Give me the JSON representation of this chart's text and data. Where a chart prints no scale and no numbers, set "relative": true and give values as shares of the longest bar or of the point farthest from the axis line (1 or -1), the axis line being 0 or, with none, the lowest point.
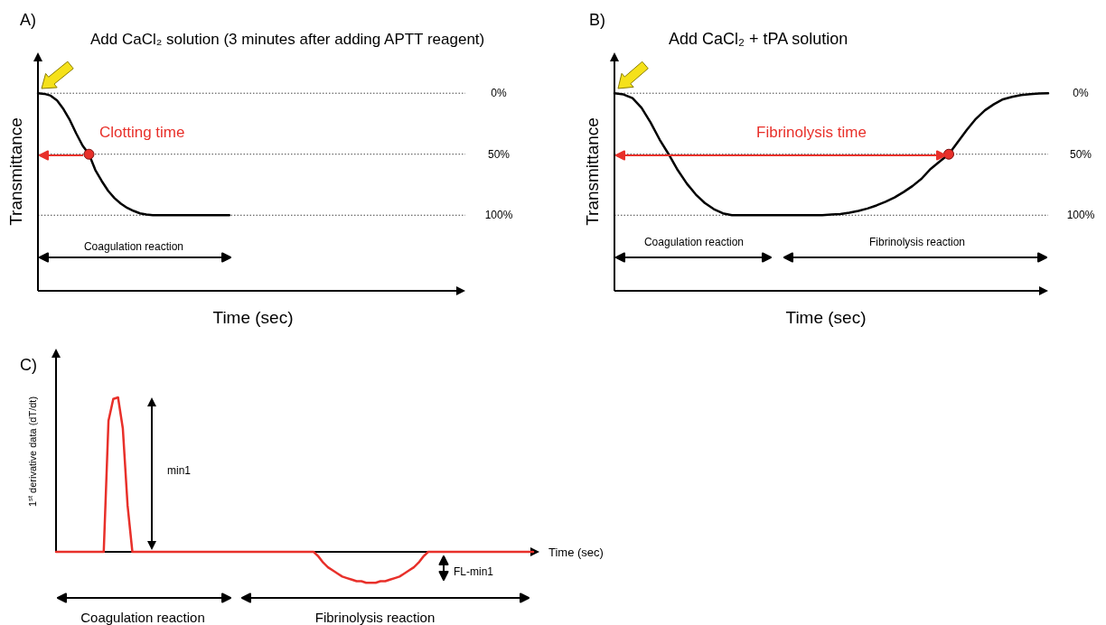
{
  "chart_data": [
    {
      "type": "line",
      "title": "A)",
      "xlabel": "Time (sec)",
      "ylabel": "Transmittance",
      "ylim": [
        162,
        -32
      ],
      "yticks": [
        {
          "value": 0,
          "label": "0%"
        },
        {
          "value": 50,
          "label": "50%"
        },
        {
          "value": 100,
          "label": "100%"
        }
      ],
      "grid": "y",
      "tick_labels": "y",
      "annotations": [
        "Add CaCl₂ solution (3 minutes after adding APTT reagent)",
        "Clotting time",
        "Coagulation reaction"
      ],
      "categories": [
        null,
        null,
        null,
        null,
        null,
        null,
        null,
        null,
        null,
        null,
        null,
        null,
        null,
        null,
        null,
        null,
        null,
        null,
        null,
        null,
        null,
        null,
        null,
        null,
        null,
        null,
        null,
        null,
        null,
        null,
        null,
        null,
        null,
        null,
        null,
        null,
        null,
        null,
        null,
        null,
        null,
        null,
        null,
        null,
        null,
        null,
        null,
        null,
        null,
        null,
        null,
        null,
        null,
        null,
        null,
        null,
        null,
        null,
        null,
        null,
        null,
        null,
        null,
        null,
        null,
        null,
        null,
        null
      ],
      "series": [
        {
          "type": "line",
          "color": "#000000",
          "marker": "none",
          "line_style": "solid",
          "values": [
            0,
            0.5,
            2,
            6,
            13,
            22,
            33,
            43,
            50,
            63,
            72,
            80,
            86,
            90.5,
            94,
            96.5,
            98.5,
            99.5,
            100,
            100,
            100,
            100,
            100,
            100,
            100,
            100,
            100,
            100,
            100,
            100,
            100,
            null,
            null,
            null,
            null,
            null,
            null,
            null,
            null,
            null,
            null,
            null,
            null,
            null,
            null,
            null,
            null,
            null,
            null,
            null,
            null,
            null,
            null,
            null,
            null,
            null,
            null,
            null,
            null,
            null,
            null,
            null,
            null,
            null,
            null,
            null,
            null,
            null
          ]
        },
        {
          "type": "scatter",
          "color": "#e8302a",
          "marker": "circle",
          "values": [
            null,
            null,
            null,
            null,
            null,
            null,
            null,
            null,
            50,
            null,
            null,
            null,
            null,
            null,
            null,
            null,
            null,
            null,
            null,
            null,
            null,
            null,
            null,
            null,
            null,
            null,
            null,
            null,
            null,
            null,
            null,
            null,
            null,
            null,
            null,
            null,
            null,
            null,
            null,
            null,
            null,
            null,
            null,
            null,
            null,
            null,
            null,
            null,
            null,
            null,
            null,
            null,
            null,
            null,
            null,
            null,
            null,
            null,
            null,
            null,
            null,
            null,
            null,
            null,
            null,
            null,
            null,
            null
          ]
        }
      ]
    },
    {
      "type": "line",
      "title": "B)",
      "xlabel": "Time (sec)",
      "ylabel": "Transmittance",
      "ylim": [
        162,
        -32
      ],
      "yticks": [
        {
          "value": 0,
          "label": "0%"
        },
        {
          "value": 50,
          "label": "50%"
        },
        {
          "value": 100,
          "label": "100%"
        }
      ],
      "grid": "y",
      "tick_labels": "y",
      "annotations": [
        "Add CaCl₂ + tPA solution",
        "Fibrinolysis time",
        "Coagulation reaction",
        "Fibrinolysis reaction"
      ],
      "categories": [
        null,
        null,
        null,
        null,
        null,
        null,
        null,
        null,
        null,
        null,
        null,
        null,
        null,
        null,
        null,
        null,
        null,
        null,
        null,
        null,
        null,
        null,
        null,
        null,
        null,
        null,
        null,
        null,
        null,
        null,
        null,
        null,
        null,
        null,
        null,
        null,
        null,
        null,
        null,
        null,
        null,
        null,
        null,
        null,
        null,
        null,
        null,
        null,
        null
      ],
      "series": [
        {
          "type": "line",
          "color": "#000000",
          "marker": "none",
          "line_style": "solid",
          "values": [
            0,
            1,
            4,
            12,
            24,
            38,
            50,
            63,
            74,
            83,
            90,
            95,
            98.5,
            100,
            100,
            100,
            100,
            100,
            100,
            100,
            100,
            100,
            100,
            100,
            99.5,
            99,
            98,
            96.5,
            94.5,
            92,
            89,
            85.5,
            81,
            76,
            70,
            62,
            56,
            50,
            40,
            30,
            21,
            14,
            9,
            5,
            3,
            1.5,
            0.8,
            0.3,
            0
          ]
        },
        {
          "type": "scatter",
          "color": "#e8302a",
          "marker": "circle",
          "values": [
            null,
            null,
            null,
            null,
            null,
            null,
            null,
            null,
            null,
            null,
            null,
            null,
            null,
            null,
            null,
            null,
            null,
            null,
            null,
            null,
            null,
            null,
            null,
            null,
            null,
            null,
            null,
            null,
            null,
            null,
            null,
            null,
            null,
            null,
            null,
            null,
            null,
            50,
            null,
            null,
            null,
            null,
            null,
            null,
            null,
            null,
            null,
            null,
            null
          ]
        }
      ]
    },
    {
      "type": "line",
      "title": "C)",
      "xlabel": "Time (sec)",
      "ylabel": "1$^{st}$ derivative data (dT/dt)",
      "relative": true,
      "tick_labels": false,
      "annotations": [
        "min1",
        "FL-min1",
        "Coagulation reaction",
        "Fibrinolysis reaction"
      ],
      "categories": [
        null,
        null,
        null,
        null,
        null,
        null,
        null,
        null,
        null,
        null,
        null,
        null,
        null,
        null,
        null,
        null,
        null,
        null,
        null,
        null,
        null,
        null,
        null,
        null,
        null,
        null,
        null,
        null,
        null,
        null,
        null,
        null,
        null,
        null,
        null,
        null,
        null,
        null,
        null,
        null,
        null,
        null,
        null,
        null,
        null,
        null,
        null,
        null,
        null,
        null,
        null,
        null,
        null,
        null,
        null,
        null,
        null,
        null,
        null,
        null,
        null,
        null,
        null,
        null,
        null,
        null,
        null,
        null,
        null,
        null,
        null,
        null,
        null,
        null,
        null,
        null,
        null,
        null,
        null,
        null,
        null,
        null,
        null,
        null,
        null,
        null,
        null,
        null,
        null,
        null,
        null,
        null,
        null,
        null,
        null,
        null,
        null,
        null,
        null,
        null,
        null
      ],
      "series": [
        {
          "type": "line",
          "color": "#e8302a",
          "marker": "none",
          "line_style": "solid",
          "values": [
            0,
            0,
            0,
            0,
            0,
            0,
            0,
            0,
            0,
            0,
            0,
            0.85,
            0.99,
            1,
            0.8,
            0.3,
            0,
            0,
            0,
            0,
            0,
            0,
            0,
            0,
            0,
            0,
            0,
            0,
            0,
            0,
            0,
            0,
            0,
            0,
            0,
            0,
            0,
            0,
            0,
            0,
            0,
            0,
            0,
            0,
            0,
            0,
            0,
            0,
            0,
            0,
            0,
            0,
            0,
            0,
            0,
            -0.03,
            -0.07,
            -0.1,
            -0.12,
            -0.14,
            -0.16,
            -0.17,
            -0.18,
            -0.19,
            -0.19,
            -0.2,
            -0.2,
            -0.2,
            -0.19,
            -0.19,
            -0.18,
            -0.17,
            -0.16,
            -0.14,
            -0.12,
            -0.1,
            -0.07,
            -0.03,
            0,
            0,
            0,
            0,
            0,
            0,
            0,
            0,
            0,
            0,
            0,
            0,
            0,
            0,
            0,
            0,
            0,
            0,
            0,
            0,
            0,
            0,
            0
          ]
        }
      ]
    }
  ]
}
